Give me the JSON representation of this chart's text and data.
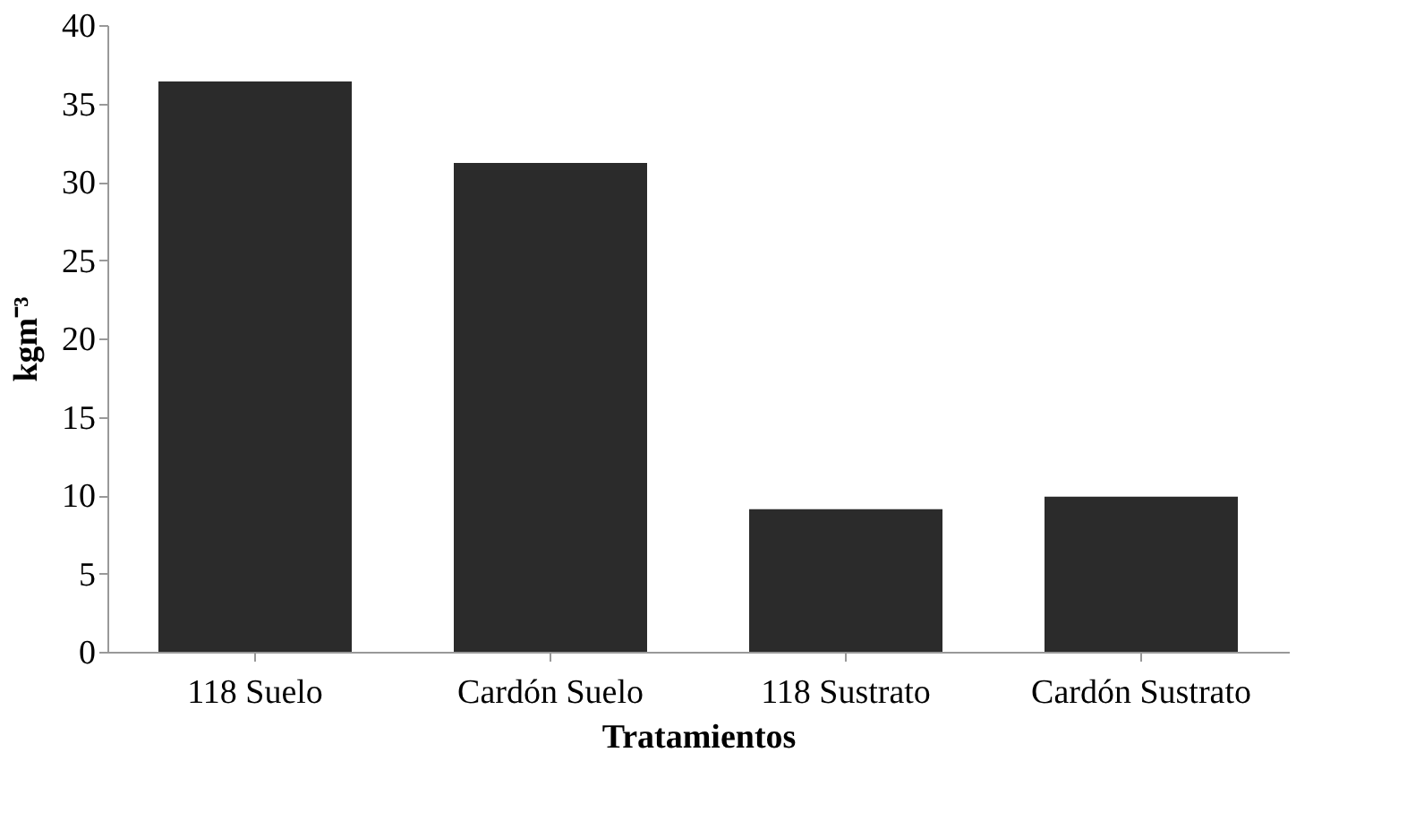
{
  "chart_data": {
    "type": "bar",
    "xlabel": "Tratamientos",
    "ylabel": "kgm⁻³",
    "categories": [
      "118 Suelo",
      "Cardón Suelo",
      "118 Sustrato",
      "Cardón Sustrato"
    ],
    "values": [
      36.4,
      31.2,
      9.1,
      9.9
    ],
    "color": "#2b2b2b",
    "ylim": [
      0,
      40
    ],
    "yticks": [
      0,
      5,
      10,
      15,
      20,
      25,
      30,
      35,
      40
    ],
    "grid": false
  }
}
